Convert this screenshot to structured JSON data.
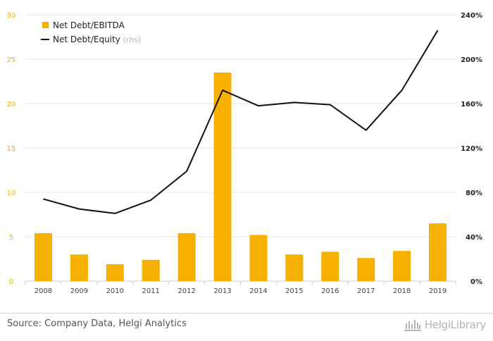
{
  "chart_data": {
    "type": "bar",
    "categories": [
      "2008",
      "2009",
      "2010",
      "2011",
      "2012",
      "2013",
      "2014",
      "2015",
      "2016",
      "2017",
      "2018",
      "2019"
    ],
    "series": [
      {
        "name": "Net Debt/EBITDA",
        "type": "bar",
        "axis": "left",
        "color": "#f5b000",
        "values": [
          5.4,
          3.0,
          1.9,
          2.4,
          5.4,
          23.5,
          5.2,
          3.0,
          3.3,
          2.6,
          3.4,
          6.5
        ]
      },
      {
        "name": "Net Debt/Equity",
        "type": "line",
        "axis": "right",
        "color": "#111111",
        "values": [
          74,
          65,
          61,
          73,
          99,
          172,
          158,
          161,
          159,
          136,
          172,
          226
        ]
      }
    ],
    "legend": [
      {
        "label": "Net Debt/EBITDA",
        "suffix": ""
      },
      {
        "label": "Net Debt/Equity",
        "suffix": "(rhs)"
      }
    ],
    "left_axis": {
      "ticks": [
        "0",
        "5",
        "10",
        "15",
        "20",
        "25",
        "30"
      ],
      "ylim": [
        0,
        30
      ],
      "color": "#f5b000"
    },
    "right_axis": {
      "ticks": [
        "0%",
        "40%",
        "80%",
        "120%",
        "160%",
        "200%",
        "240%"
      ],
      "ylim": [
        0,
        240
      ]
    },
    "grid": true,
    "legend_position": "top-left"
  },
  "footer": {
    "source": "Source: Company Data, Helgi Analytics",
    "logo_text": "HelgiLibrary"
  }
}
